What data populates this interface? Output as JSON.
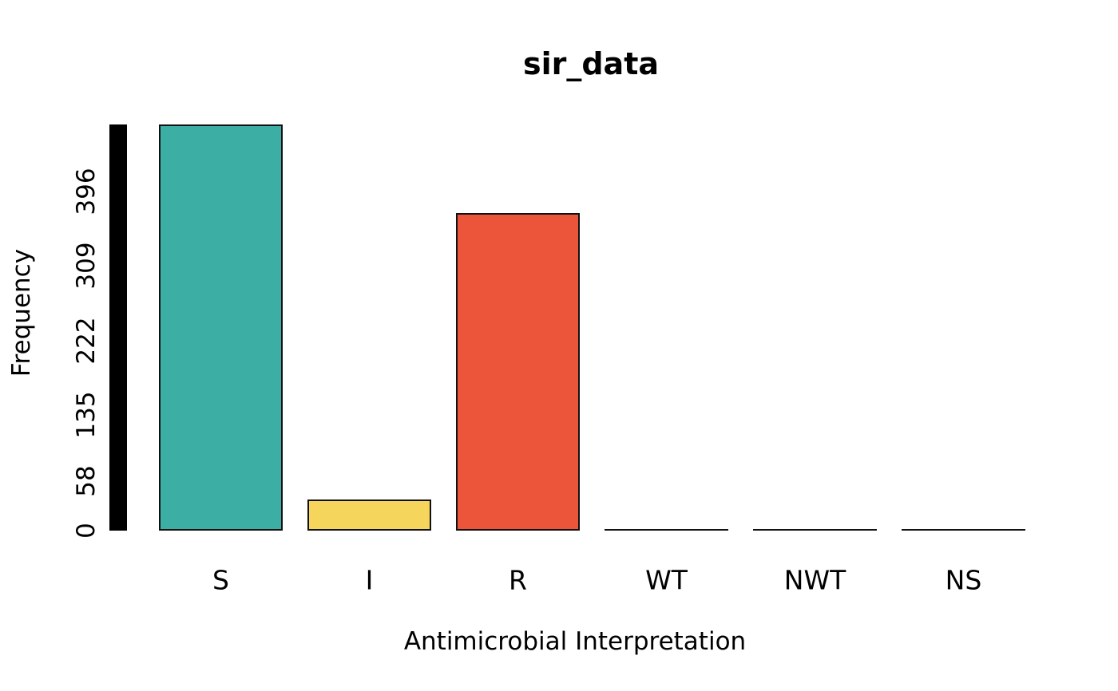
{
  "title": "sir_data",
  "y_axis": {
    "label": "Frequency",
    "ticks": [
      "0",
      "58",
      "135",
      "222",
      "309",
      "396"
    ]
  },
  "x_axis": {
    "label": "Antimicrobial Interpretation",
    "categories": [
      "S",
      "I",
      "R",
      "WT",
      "NWT",
      "NS"
    ]
  },
  "chart_data": {
    "type": "bar",
    "title": "sir_data",
    "xlabel": "Antimicrobial Interpretation",
    "ylabel": "Frequency",
    "categories": [
      "S",
      "I",
      "R",
      "WT",
      "NWT",
      "NS"
    ],
    "values": [
      474,
      36,
      371,
      0,
      0,
      0
    ],
    "bar_colors": [
      "#3CAEA3",
      "#F6D55C",
      "#ED553B",
      "none",
      "none",
      "none"
    ],
    "bar_border_color": "#111111",
    "yticks": [
      0,
      58,
      135,
      222,
      309,
      396
    ],
    "ylim": [
      0,
      474
    ],
    "axis_bar_color": "#000000",
    "background": "#FFFFFF",
    "grid": false,
    "legend_position": "none"
  }
}
